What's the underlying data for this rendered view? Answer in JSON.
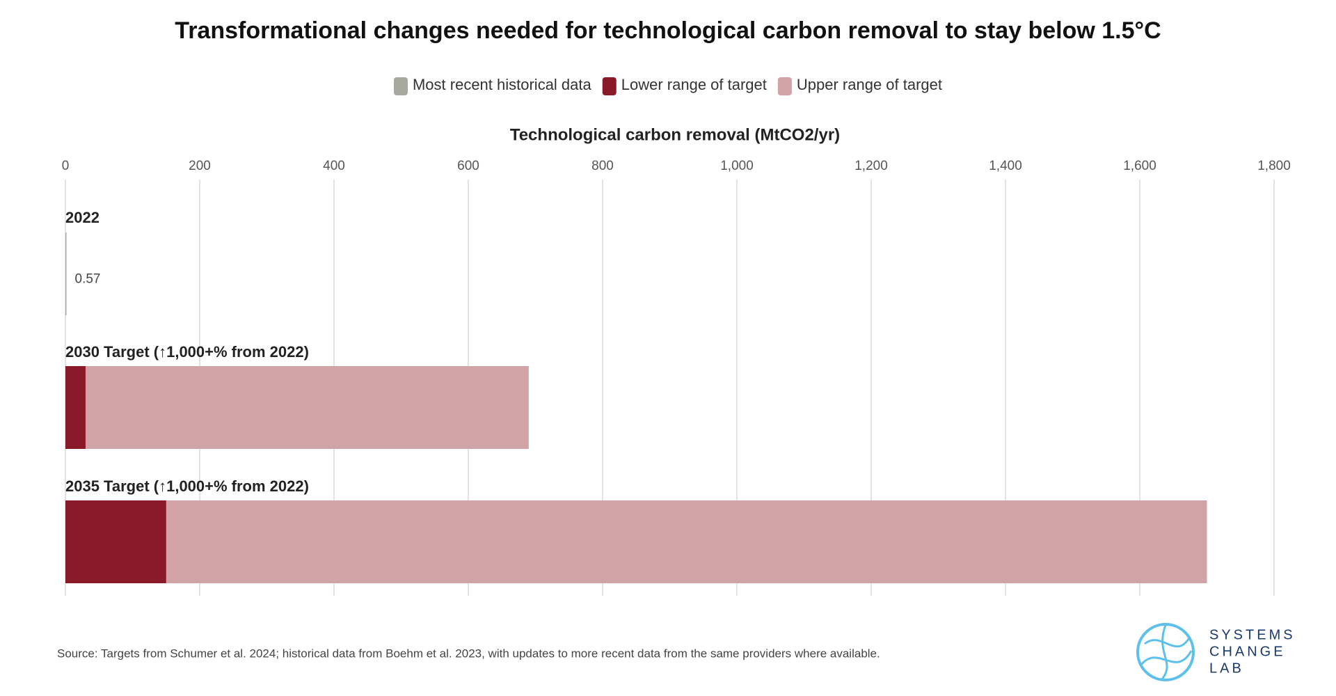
{
  "chart_data": {
    "type": "range-bar",
    "title": "Transformational changes needed for technological carbon removal to stay below 1.5°C",
    "x_axis_title": "Technological carbon removal (MtCO2/yr)",
    "categories": [
      "2022",
      "2030 Target (↑1,000+% from 2022)",
      "2035 Target (↑1,000+% from 2022)"
    ],
    "series": [
      {
        "name": "Most recent historical data",
        "color": "#a8a8a0",
        "values": [
          0.57,
          null,
          null
        ],
        "data_labels": true
      },
      {
        "name": "Upper range of target",
        "color": "#d0a3a6",
        "values": [
          null,
          690,
          1700
        ],
        "data_labels": false
      },
      {
        "name": "Lower range of target",
        "color": "#8b1a28",
        "values": [
          null,
          30,
          150
        ],
        "data_labels": false
      }
    ],
    "legend_order": [
      0,
      2,
      1
    ],
    "legend_position": "top",
    "xlim": [
      0,
      1800
    ],
    "xticks": [
      0,
      200,
      400,
      600,
      800,
      {
        "value": 1000,
        "label": "1,000"
      },
      {
        "value": 1200,
        "label": "1,200"
      },
      {
        "value": 1400,
        "label": "1,400"
      },
      {
        "value": 1600,
        "label": "1,600"
      },
      {
        "value": 1800,
        "label": "1,800"
      }
    ],
    "grid": true,
    "source": "Source: Targets from Schumer et al. 2024; historical data from Boehm et al. 2023, with updates to more recent data from the same providers where available.",
    "logo_text": [
      "SYSTEMS",
      "CHANGE",
      "LAB"
    ]
  }
}
